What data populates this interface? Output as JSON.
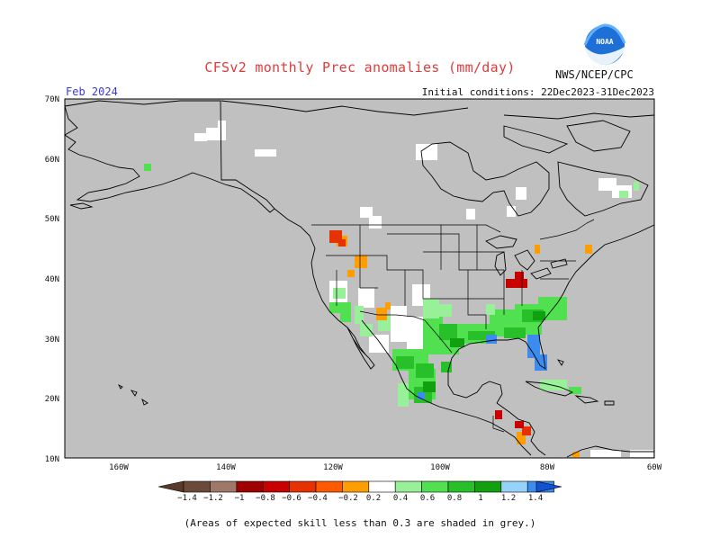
{
  "title": "CFSv2 monthly Prec anomalies (mm/day)",
  "month": "Feb 2024",
  "initial_conditions": "Initial conditions: 22Dec2023-31Dec2023",
  "organization": "NWS/NCEP/CPC",
  "logo_text": "NOAA",
  "footnote": "(Areas of expected skill less than 0.3 are shaded in grey.)",
  "colors": {
    "skill_mask": "#c0c0c0",
    "coast": "#000000",
    "dry": [
      "#6b4a3a",
      "#a0786a",
      "#a00000",
      "#c80000",
      "#e63200",
      "#ff5a00",
      "#ff9e00"
    ],
    "neutral": "#ffffff",
    "wet": [
      "#98f098",
      "#50e050",
      "#28c028",
      "#10a010",
      "#96d2fa",
      "#3c8cf0",
      "#1450d2"
    ]
  },
  "map": {
    "lon_labels": [
      "160W",
      "140W",
      "120W",
      "100W",
      "80W",
      "60W"
    ],
    "lat_labels": [
      "70N",
      "60N",
      "50N",
      "40N",
      "30N",
      "20N",
      "10N"
    ]
  },
  "colorbar": {
    "labels": [
      "−1.4",
      "−1.2",
      "−1",
      "−0.8",
      "−0.6",
      "−0.4",
      "−0.2",
      "0.2",
      "0.4",
      "0.6",
      "0.8",
      "1",
      "1.2",
      "1.4"
    ]
  }
}
